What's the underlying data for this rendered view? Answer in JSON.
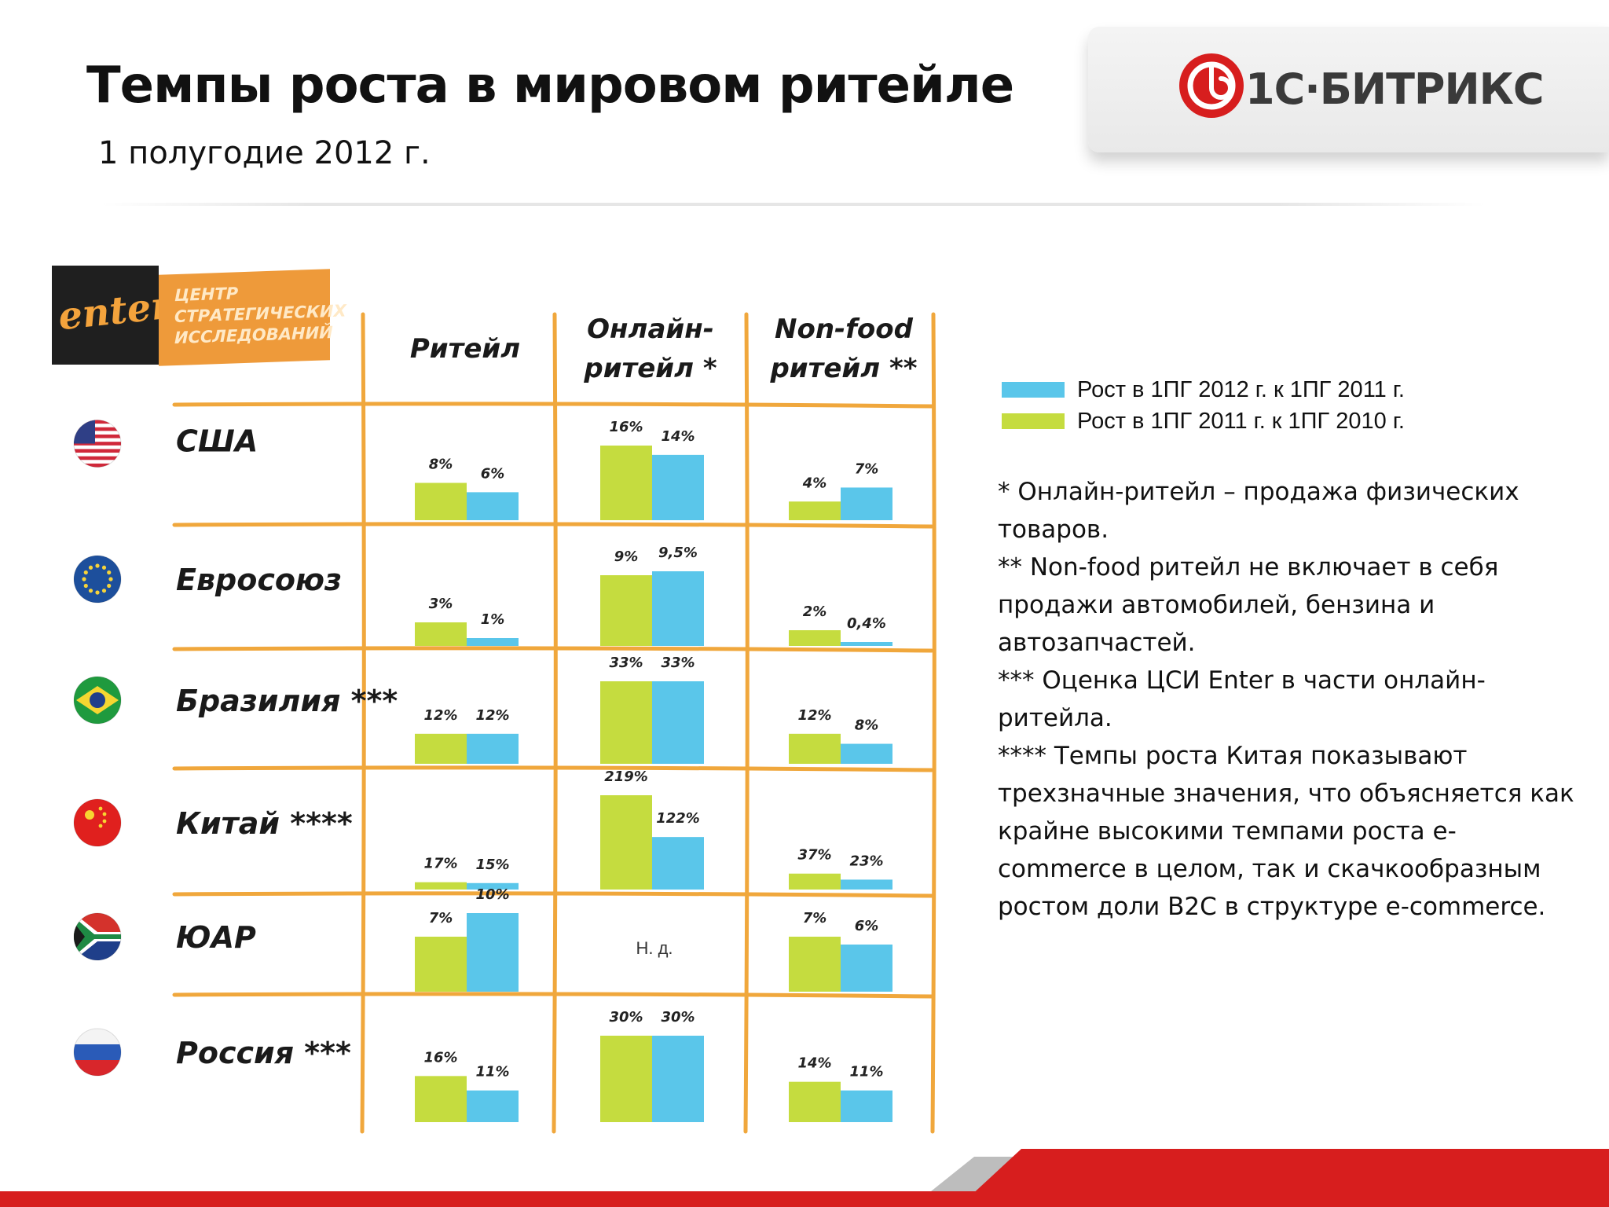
{
  "header": {
    "title": "Темпы роста в мировом ритейле",
    "subtitle": "1 полугодие 2012 г."
  },
  "brand": {
    "logo_text": "1С·БИТРИКС",
    "accent_color": "#d71e1e"
  },
  "enter_logo": {
    "word": "enter",
    "tagline": "ЦЕНТР СТРАТЕГИЧЕСКИХ ИССЛЕДОВАНИЙ",
    "color": "#ee9a3a"
  },
  "chart_data": {
    "type": "bar",
    "columns": [
      "Ритейл",
      "Онлайн-ритейл *",
      "Non-food ритейл **"
    ],
    "column_heads": [
      [
        "Ритейл"
      ],
      [
        "Онлайн-",
        "ритейл *"
      ],
      [
        "Non-food",
        "ритейл **"
      ]
    ],
    "rows": [
      {
        "country": "США",
        "flag": "usa-flag-icon",
        "values": [
          {
            "v2011": 8,
            "v2012": 6,
            "l2011": "8%",
            "l2012": "6%"
          },
          {
            "v2011": 16,
            "v2012": 14,
            "l2011": "16%",
            "l2012": "14%"
          },
          {
            "v2011": 4,
            "v2012": 7,
            "l2011": "4%",
            "l2012": "7%"
          }
        ]
      },
      {
        "country": "Евросоюз",
        "flag": "eu-flag-icon",
        "values": [
          {
            "v2011": 3,
            "v2012": 1,
            "l2011": "3%",
            "l2012": "1%"
          },
          {
            "v2011": 9,
            "v2012": 9.5,
            "l2011": "9%",
            "l2012": "9,5%"
          },
          {
            "v2011": 2,
            "v2012": 0.4,
            "l2011": "2%",
            "l2012": "0,4%"
          }
        ]
      },
      {
        "country": "Бразилия ***",
        "flag": "brazil-flag-icon",
        "values": [
          {
            "v2011": 12,
            "v2012": 12,
            "l2011": "12%",
            "l2012": "12%"
          },
          {
            "v2011": 33,
            "v2012": 33,
            "l2011": "33%",
            "l2012": "33%"
          },
          {
            "v2011": 12,
            "v2012": 8,
            "l2011": "12%",
            "l2012": "8%"
          }
        ]
      },
      {
        "country": "Китай ****",
        "flag": "china-flag-icon",
        "values": [
          {
            "v2011": 17,
            "v2012": 15,
            "l2011": "17%",
            "l2012": "15%"
          },
          {
            "v2011": 219,
            "v2012": 122,
            "l2011": "219%",
            "l2012": "122%"
          },
          {
            "v2011": 37,
            "v2012": 23,
            "l2011": "37%",
            "l2012": "23%"
          }
        ]
      },
      {
        "country": "ЮАР",
        "flag": "south-africa-flag-icon",
        "values": [
          {
            "v2011": 7,
            "v2012": 10,
            "l2011": "7%",
            "l2012": "10%"
          },
          null,
          {
            "v2011": 7,
            "v2012": 6,
            "l2011": "7%",
            "l2012": "6%"
          }
        ]
      },
      {
        "country": "Россия ***",
        "flag": "russia-flag-icon",
        "values": [
          {
            "v2011": 16,
            "v2012": 11,
            "l2011": "16%",
            "l2012": "11%"
          },
          {
            "v2011": 30,
            "v2012": 30,
            "l2011": "30%",
            "l2012": "30%"
          },
          {
            "v2011": 14,
            "v2012": 11,
            "l2011": "14%",
            "l2012": "11%"
          }
        ]
      }
    ],
    "no_data_label": "Н. д.",
    "series": [
      {
        "name": "Рост в 1ПГ 2012 г. к 1ПГ 2011 г.",
        "key": "v2012",
        "color": "#5ac6ea"
      },
      {
        "name": "Рост в 1ПГ 2011 г. к 1ПГ 2010 г.",
        "key": "v2011",
        "color": "#c5dc3f"
      }
    ],
    "grid_color": "#f0a73c",
    "legend": "right"
  },
  "notes": [
    "* Онлайн-ритейл – продажа физических товаров.",
    "** Non-food ритейл не включает в себя продажи автомобилей, бензина и автозапчастей.",
    "*** Оценка ЦСИ Enter в части онлайн-ритейла.",
    "**** Темпы роста Китая показывают трехзначные значения, что объясняется как крайне высокими темпами роста e-commerce в целом, так  и скачкообразным ростом доли В2С в структуре  e-commerce."
  ]
}
